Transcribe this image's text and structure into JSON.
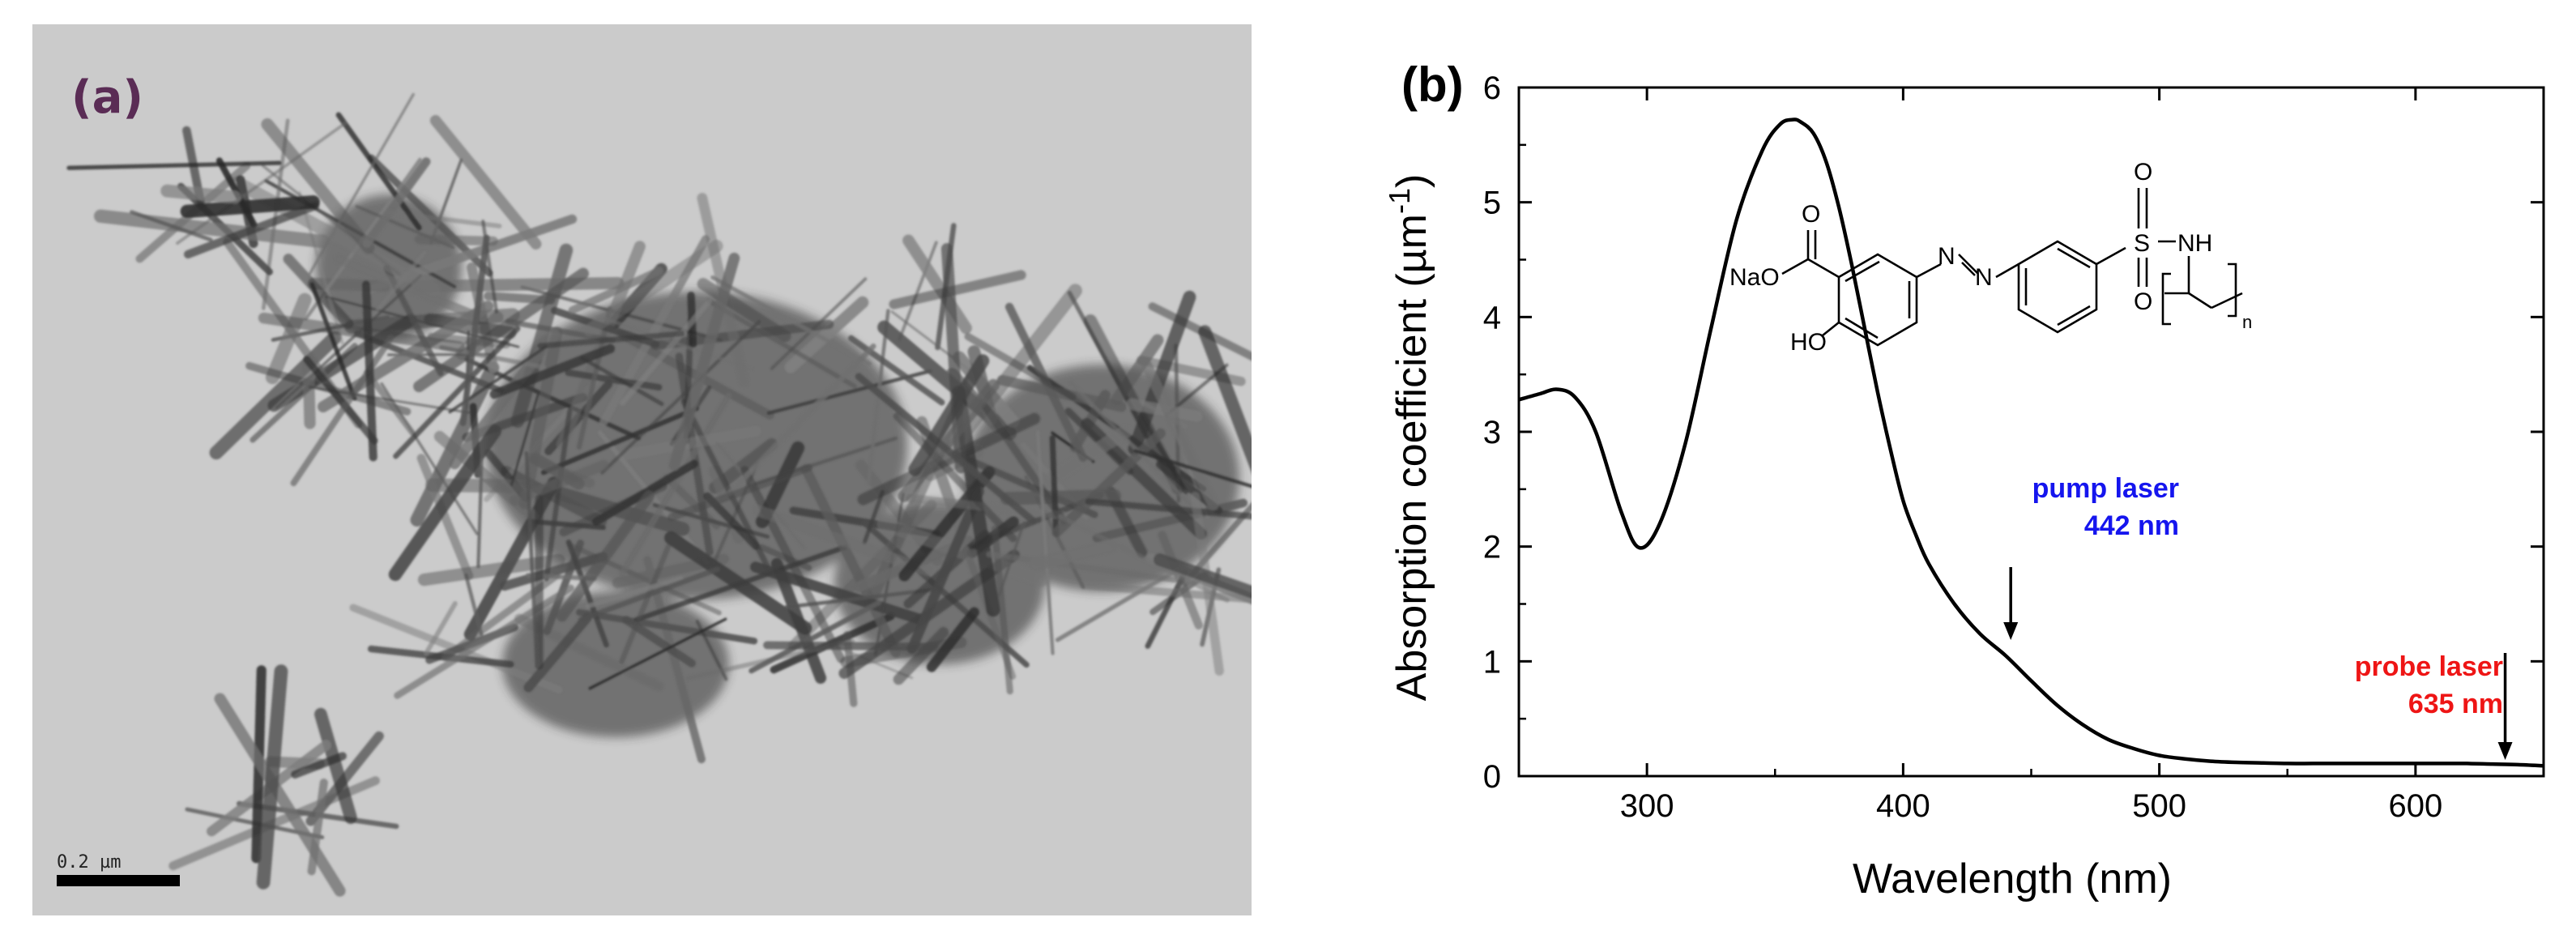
{
  "panel_a": {
    "label": "(a)",
    "scale_bar_text": "0.2 µm"
  },
  "panel_b": {
    "label": "(b)",
    "annotations": {
      "pump": {
        "line1": "pump laser",
        "line2": "442 nm",
        "color": "#1515ee",
        "wavelength": 442
      },
      "probe": {
        "line1": "probe laser",
        "line2": "635 nm",
        "color": "#ee1515",
        "wavelength": 635
      }
    },
    "molecule_labels": {
      "carbonyl_o": "O",
      "sodium_carboxylate": "NaO",
      "azo_n1": "N",
      "azo_n2": "N",
      "hydroxyl": "HO",
      "sulfonyl_o_top": "O",
      "sulfur": "S",
      "sulfonyl_o_bottom": "O",
      "amide_nh": "NH",
      "repeat_n": "n"
    }
  },
  "chart_data": {
    "type": "line",
    "title": "",
    "xlabel": "Wavelength (nm)",
    "ylabel": "Absorption coefficient (µm",
    "ylabel_superscript": "-1",
    "ylabel_close": ")",
    "xlim": [
      250,
      650
    ],
    "ylim": [
      0,
      6
    ],
    "xticks": [
      300,
      400,
      500,
      600
    ],
    "yticks": [
      0,
      1,
      2,
      3,
      4,
      5,
      6
    ],
    "grid": false,
    "line_color": "#000000",
    "series": [
      {
        "x": [
          250,
          258,
          265,
          272,
          280,
          290,
          297,
          305,
          315,
          325,
          335,
          345,
          352,
          357,
          360,
          365,
          370,
          375,
          380,
          385,
          390,
          395,
          400,
          405,
          410,
          420,
          430,
          440,
          450,
          460,
          470,
          480,
          490,
          500,
          510,
          520,
          530,
          540,
          550,
          560,
          570,
          580,
          590,
          600,
          610,
          620,
          630,
          640,
          650
        ],
        "y": [
          3.28,
          3.33,
          3.37,
          3.3,
          3.0,
          2.3,
          1.99,
          2.2,
          2.9,
          3.9,
          4.85,
          5.45,
          5.68,
          5.72,
          5.7,
          5.6,
          5.35,
          4.95,
          4.45,
          3.9,
          3.35,
          2.85,
          2.4,
          2.1,
          1.85,
          1.5,
          1.24,
          1.05,
          0.83,
          0.62,
          0.45,
          0.32,
          0.24,
          0.18,
          0.15,
          0.13,
          0.12,
          0.115,
          0.11,
          0.11,
          0.11,
          0.11,
          0.11,
          0.11,
          0.11,
          0.11,
          0.105,
          0.1,
          0.09
        ]
      }
    ]
  }
}
